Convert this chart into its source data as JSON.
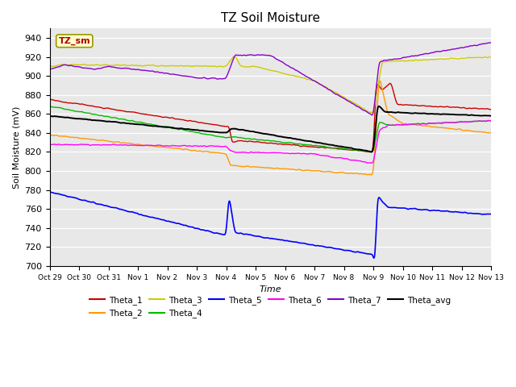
{
  "title": "TZ Soil Moisture",
  "xlabel": "Time",
  "ylabel": "Soil Moisture (mV)",
  "ylim": [
    700,
    950
  ],
  "yticks": [
    700,
    720,
    740,
    760,
    780,
    800,
    820,
    840,
    860,
    880,
    900,
    920,
    940
  ],
  "background_color": "#e8e8e8",
  "figure_color": "#ffffff",
  "label_box_text": "TZ_sm",
  "label_box_color": "#ffffcc",
  "label_box_text_color": "#aa0000",
  "series_colors": {
    "Theta_1": "#cc0000",
    "Theta_2": "#ff9900",
    "Theta_3": "#cccc00",
    "Theta_4": "#00bb00",
    "Theta_5": "#0000ff",
    "Theta_6": "#ff00ff",
    "Theta_7": "#8800cc",
    "Theta_avg": "#000000"
  },
  "xtick_labels": [
    "Oct 29",
    "Oct 30",
    "Oct 31",
    "Nov 1",
    "Nov 2",
    "Nov 3",
    "Nov 4",
    "Nov 5",
    "Nov 6",
    "Nov 7",
    "Nov 8",
    "Nov 9",
    "Nov 10",
    "Nov 11",
    "Nov 12",
    "Nov 13"
  ],
  "xtick_positions": [
    0,
    1,
    2,
    3,
    4,
    5,
    6,
    7,
    8,
    9,
    10,
    11,
    12,
    13,
    14,
    15
  ]
}
